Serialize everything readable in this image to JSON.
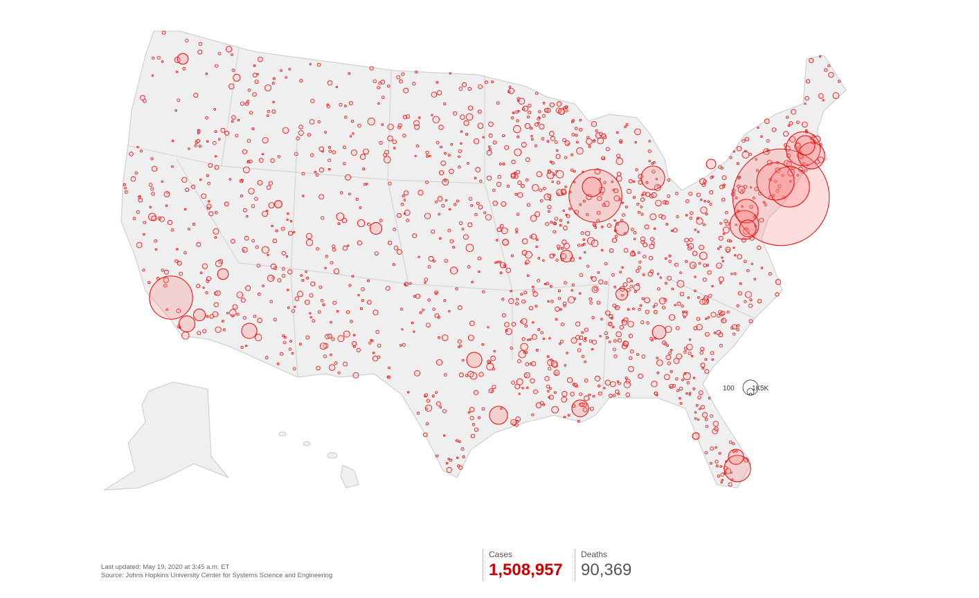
{
  "map": {
    "bubbles": [
      200000,
      35000,
      25000,
      15000,
      30000,
      18000,
      12000,
      60000,
      8000,
      12000,
      40000,
      5500,
      5000,
      3000,
      2500,
      6000,
      5000,
      7000,
      15000,
      5000,
      4000,
      4000,
      3000,
      2000,
      6000,
      8000,
      2500,
      1200,
      3000,
      3000,
      800,
      1000
    ],
    "legend": [
      {
        "value": 100,
        "label": "100"
      },
      {
        "value": 1000,
        "label": "1K"
      },
      {
        "value": 5000,
        "label": "5K"
      }
    ]
  },
  "footer": {
    "updated": "Last updated: May 19, 2020 at 3:45 a.m. ET",
    "source": "Source: Johns Hopkins University Center for Systems Science and Engineering"
  },
  "totals": [
    {
      "label": "Cases",
      "value": 1508957,
      "value_label": "1,508,957"
    },
    {
      "label": "Deaths",
      "value": 90369,
      "value_label": "90,369"
    }
  ]
}
